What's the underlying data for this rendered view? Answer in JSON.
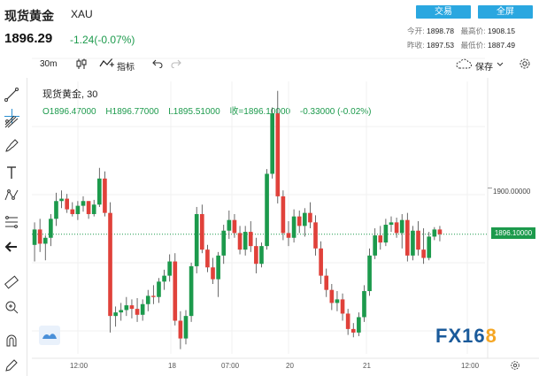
{
  "header": {
    "title": "现货黄金",
    "symbol": "XAU",
    "price": "1896.29",
    "change": "-1.24(-0.07%)",
    "trade_button": "交易",
    "fullscreen_button": "全屏",
    "stats": {
      "open_label": "今开:",
      "open_value": "1898.78",
      "high_label": "最高价:",
      "high_value": "1908.15",
      "prev_close_label": "昨收:",
      "prev_close_value": "1897.53",
      "low_label": "最低价:",
      "low_value": "1887.49"
    }
  },
  "toolbar": {
    "interval": "30m",
    "indicators": "指标",
    "save": "保存"
  },
  "chart": {
    "legend_name": "现货黄金, 30",
    "legend_o": "O1896.47000",
    "legend_h": "H1896.77000",
    "legend_l": "L1895.51000",
    "legend_c": "收=1896.10000",
    "legend_chg": "-0.33000 (-0.02%)",
    "price_level": "1900.00000",
    "last_price": "1896.10000",
    "x_labels": [
      "12:00",
      "18",
      "07:00",
      "20",
      "21",
      "12:00"
    ],
    "colors": {
      "up": "#1c9a4c",
      "down": "#e0413a",
      "accent": "#2aa7e0"
    }
  },
  "chart_data": {
    "type": "candlestick",
    "x": [
      "12:00",
      "18",
      "07:00",
      "20",
      "21",
      "12:00"
    ],
    "candles_ohlc": [
      [
        1895.2,
        1897.1,
        1893.8,
        1896.5
      ],
      [
        1896.5,
        1897.4,
        1894.6,
        1895.3
      ],
      [
        1895.3,
        1896.0,
        1893.9,
        1895.8
      ],
      [
        1895.8,
        1897.8,
        1895.1,
        1897.4
      ],
      [
        1897.4,
        1899.6,
        1896.8,
        1898.9
      ],
      [
        1898.9,
        1899.8,
        1898.3,
        1899.1
      ],
      [
        1899.1,
        1899.5,
        1897.9,
        1898.2
      ],
      [
        1898.2,
        1898.8,
        1897.6,
        1897.8
      ],
      [
        1897.8,
        1898.9,
        1897.3,
        1898.5
      ],
      [
        1898.5,
        1899.3,
        1898.0,
        1898.9
      ],
      [
        1898.9,
        1898.9,
        1897.4,
        1897.8
      ],
      [
        1897.8,
        1899.0,
        1897.6,
        1898.6
      ],
      [
        1898.6,
        1901.7,
        1898.4,
        1900.8
      ],
      [
        1900.8,
        1901.4,
        1897.6,
        1897.9
      ],
      [
        1897.9,
        1898.8,
        1887.8,
        1889.2
      ],
      [
        1889.2,
        1890.0,
        1888.3,
        1889.5
      ],
      [
        1889.5,
        1890.3,
        1888.8,
        1889.7
      ],
      [
        1889.7,
        1890.8,
        1889.2,
        1890.1
      ],
      [
        1890.1,
        1890.6,
        1889.0,
        1889.8
      ],
      [
        1889.8,
        1890.7,
        1888.7,
        1889.3
      ],
      [
        1889.3,
        1890.6,
        1888.8,
        1890.2
      ],
      [
        1890.2,
        1891.4,
        1889.6,
        1890.9
      ],
      [
        1890.9,
        1891.8,
        1890.2,
        1890.8
      ],
      [
        1890.8,
        1892.4,
        1890.3,
        1892.1
      ],
      [
        1892.1,
        1893.1,
        1891.4,
        1892.6
      ],
      [
        1892.6,
        1894.4,
        1892.1,
        1893.8
      ],
      [
        1893.8,
        1894.5,
        1888.4,
        1888.8
      ],
      [
        1888.8,
        1889.6,
        1886.4,
        1887.3
      ],
      [
        1887.3,
        1889.7,
        1886.8,
        1889.2
      ],
      [
        1889.2,
        1893.7,
        1888.7,
        1893.4
      ],
      [
        1893.4,
        1898.4,
        1892.8,
        1897.8
      ],
      [
        1897.8,
        1898.6,
        1894.5,
        1894.8
      ],
      [
        1894.8,
        1895.2,
        1892.9,
        1893.3
      ],
      [
        1893.3,
        1894.1,
        1891.9,
        1892.3
      ],
      [
        1892.3,
        1894.6,
        1890.8,
        1894.3
      ],
      [
        1894.3,
        1896.9,
        1893.6,
        1896.4
      ],
      [
        1896.4,
        1898.1,
        1895.7,
        1897.3
      ],
      [
        1897.3,
        1897.8,
        1895.8,
        1896.2
      ],
      [
        1896.2,
        1896.8,
        1894.4,
        1894.8
      ],
      [
        1894.8,
        1896.8,
        1894.3,
        1896.3
      ],
      [
        1896.3,
        1897.2,
        1894.6,
        1895.1
      ],
      [
        1895.1,
        1895.8,
        1892.8,
        1893.6
      ],
      [
        1893.6,
        1895.4,
        1893.3,
        1895.1
      ],
      [
        1895.1,
        1901.6,
        1894.8,
        1901.2
      ],
      [
        1901.2,
        1906.8,
        1900.8,
        1906.3
      ],
      [
        1906.3,
        1908.2,
        1898.7,
        1899.3
      ],
      [
        1899.3,
        1899.8,
        1895.6,
        1896.2
      ],
      [
        1896.2,
        1897.2,
        1895.1,
        1895.8
      ],
      [
        1895.8,
        1898.2,
        1895.4,
        1897.6
      ],
      [
        1897.6,
        1898.1,
        1896.2,
        1896.8
      ],
      [
        1896.8,
        1898.3,
        1895.9,
        1897.9
      ],
      [
        1897.9,
        1898.8,
        1896.6,
        1897.1
      ],
      [
        1897.1,
        1897.7,
        1894.3,
        1894.9
      ],
      [
        1894.9,
        1895.5,
        1891.9,
        1892.6
      ],
      [
        1892.6,
        1893.2,
        1890.8,
        1891.4
      ],
      [
        1891.4,
        1891.9,
        1889.7,
        1890.3
      ],
      [
        1890.3,
        1891.3,
        1889.6,
        1890.6
      ],
      [
        1890.6,
        1891.1,
        1888.8,
        1889.4
      ],
      [
        1889.4,
        1889.8,
        1887.6,
        1888.1
      ],
      [
        1888.1,
        1888.6,
        1887.4,
        1887.8
      ],
      [
        1887.8,
        1889.5,
        1887.5,
        1889.1
      ],
      [
        1889.1,
        1891.8,
        1888.7,
        1891.3
      ],
      [
        1891.3,
        1894.9,
        1890.9,
        1894.3
      ],
      [
        1894.3,
        1896.6,
        1894.0,
        1896.0
      ],
      [
        1896.0,
        1896.8,
        1894.8,
        1895.4
      ],
      [
        1895.4,
        1897.4,
        1895.1,
        1896.9
      ],
      [
        1896.9,
        1897.6,
        1896.3,
        1897.1
      ],
      [
        1897.1,
        1897.5,
        1895.8,
        1896.2
      ],
      [
        1896.2,
        1897.8,
        1894.9,
        1897.3
      ],
      [
        1897.3,
        1897.9,
        1893.8,
        1894.3
      ],
      [
        1894.3,
        1896.8,
        1893.9,
        1896.4
      ],
      [
        1896.4,
        1897.2,
        1894.3,
        1894.8
      ],
      [
        1894.8,
        1896.6,
        1893.6,
        1894.1
      ],
      [
        1894.1,
        1896.3,
        1893.9,
        1895.9
      ],
      [
        1895.9,
        1896.7,
        1895.6,
        1896.5
      ],
      [
        1896.5,
        1896.8,
        1895.5,
        1896.1
      ]
    ],
    "ylim": [
      1886.0,
      1909.0
    ],
    "last_price": 1896.1,
    "grid": true
  }
}
